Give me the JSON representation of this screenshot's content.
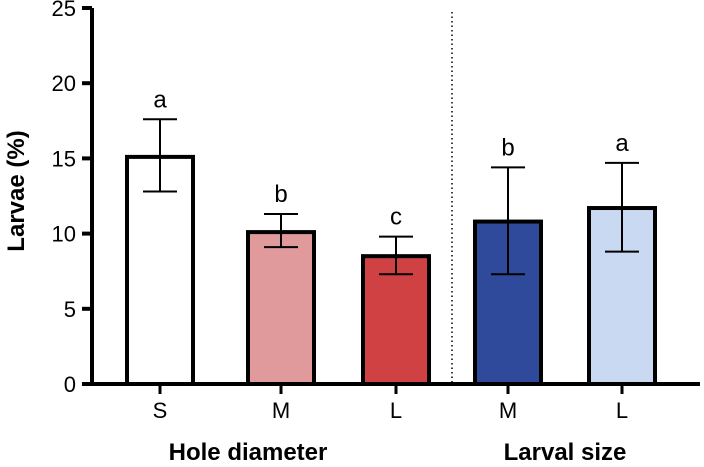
{
  "chart_data": {
    "type": "bar",
    "ylabel": "Larvae (%)",
    "ylim": [
      0,
      25
    ],
    "yticks": [
      "0",
      "5",
      "10",
      "15",
      "20",
      "25"
    ],
    "groups": [
      {
        "label": "Hole diameter",
        "categories": [
          "S",
          "M",
          "L"
        ]
      },
      {
        "label": "Larval size",
        "categories": [
          "M",
          "L"
        ]
      }
    ],
    "bars": [
      {
        "category": "S",
        "group": "Hole diameter",
        "value": 15.1,
        "error_low": 12.8,
        "error_high": 17.6,
        "significance": "a",
        "color": "#ffffff"
      },
      {
        "category": "M",
        "group": "Hole diameter",
        "value": 10.1,
        "error_low": 9.1,
        "error_high": 11.3,
        "significance": "b",
        "color": "#e09a9c"
      },
      {
        "category": "L",
        "group": "Hole diameter",
        "value": 8.5,
        "error_low": 7.3,
        "error_high": 9.8,
        "significance": "c",
        "color": "#d04143"
      },
      {
        "category": "M",
        "group": "Larval size",
        "value": 10.8,
        "error_low": 7.3,
        "error_high": 14.4,
        "significance": "b",
        "color": "#2f4a9a"
      },
      {
        "category": "L",
        "group": "Larval size",
        "value": 11.7,
        "error_low": 8.8,
        "error_high": 14.7,
        "significance": "a",
        "color": "#c9d9f1"
      }
    ],
    "divider_between_groups": true,
    "grid": false
  }
}
